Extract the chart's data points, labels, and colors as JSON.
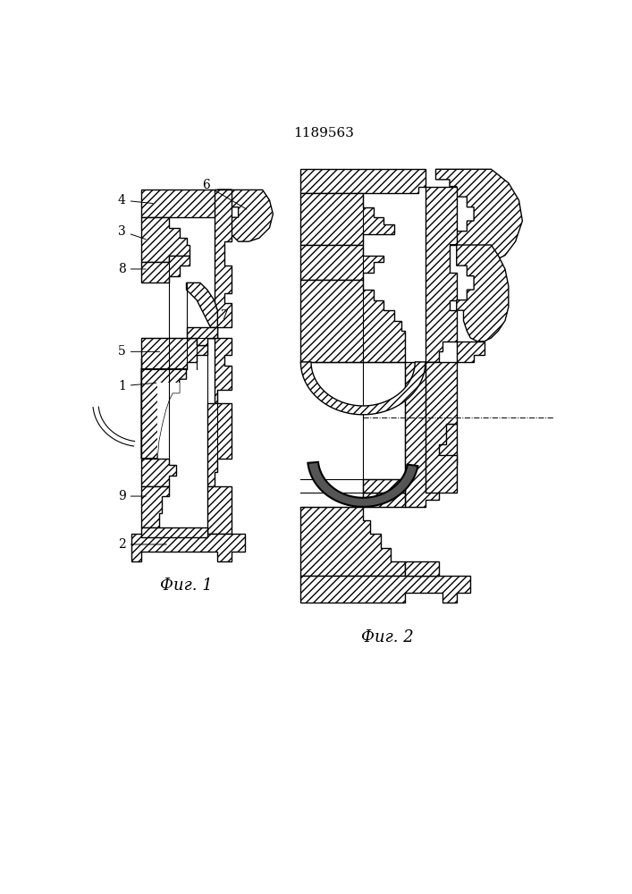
{
  "title": "1189563",
  "title_fontsize": 11,
  "fig1_label": "Фиг. 1",
  "fig2_label": "Фиг. 2",
  "label_fontsize": 13,
  "bg_color": "#ffffff",
  "line_color": "#000000",
  "fig_width": 7.07,
  "fig_height": 10.0
}
